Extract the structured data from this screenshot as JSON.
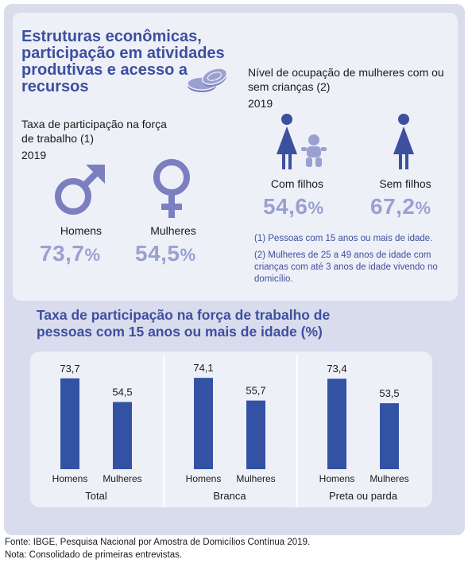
{
  "title": "Estruturas econômicas, participação em atividades produtivas e acesso a recursos",
  "labor_section": {
    "heading": "Taxa de participação na força de trabalho (1)",
    "year": "2019",
    "men": {
      "label": "Homens",
      "value": "73,7",
      "unit": "%"
    },
    "women": {
      "label": "Mulheres",
      "value": "54,5",
      "unit": "%"
    }
  },
  "occupation_section": {
    "heading": "Nível de ocupação de mulheres com ou sem crianças (2)",
    "year": "2019",
    "with_children": {
      "label": "Com filhos",
      "value": "54,6",
      "unit": "%"
    },
    "without_children": {
      "label": "Sem filhos",
      "value": "67,2",
      "unit": "%"
    }
  },
  "notes": [
    "(1) Pessoas com 15 anos ou mais de idade.",
    "(2) Mulheres de 25 a 49 anos de idade com crianças com até 3 anos de idade vivendo no domicílio."
  ],
  "colors": {
    "title": "#3d4f9f",
    "bar": "#3452a4",
    "icon": "#7b7fbf",
    "big_number": "#9aa0d0"
  },
  "icons": [
    "coins-icon",
    "male-symbol-icon",
    "female-symbol-icon",
    "woman-icon",
    "baby-icon"
  ],
  "chart_data": {
    "type": "bar",
    "title": "Taxa de participação na força de trabalho de pessoas com 15 anos ou mais de idade (%)",
    "groups": [
      "Total",
      "Branca",
      "Preta ou parda"
    ],
    "categories": [
      "Homens",
      "Mulheres"
    ],
    "series": [
      {
        "group": "Total",
        "values": [
          73.7,
          54.5
        ],
        "labels": [
          "73,7",
          "54,5"
        ]
      },
      {
        "group": "Branca",
        "values": [
          74.1,
          55.7
        ],
        "labels": [
          "74,1",
          "55,7"
        ]
      },
      {
        "group": "Preta ou parda",
        "values": [
          73.4,
          53.5
        ],
        "labels": [
          "73,4",
          "53,5"
        ]
      }
    ],
    "ylim": [
      0,
      100
    ],
    "grid": false
  },
  "footer": {
    "source": "Fonte: IBGE, Pesquisa Nacional por Amostra de Domicílios Contínua 2019.",
    "note": "Nota: Consolidado de primeiras entrevistas."
  }
}
